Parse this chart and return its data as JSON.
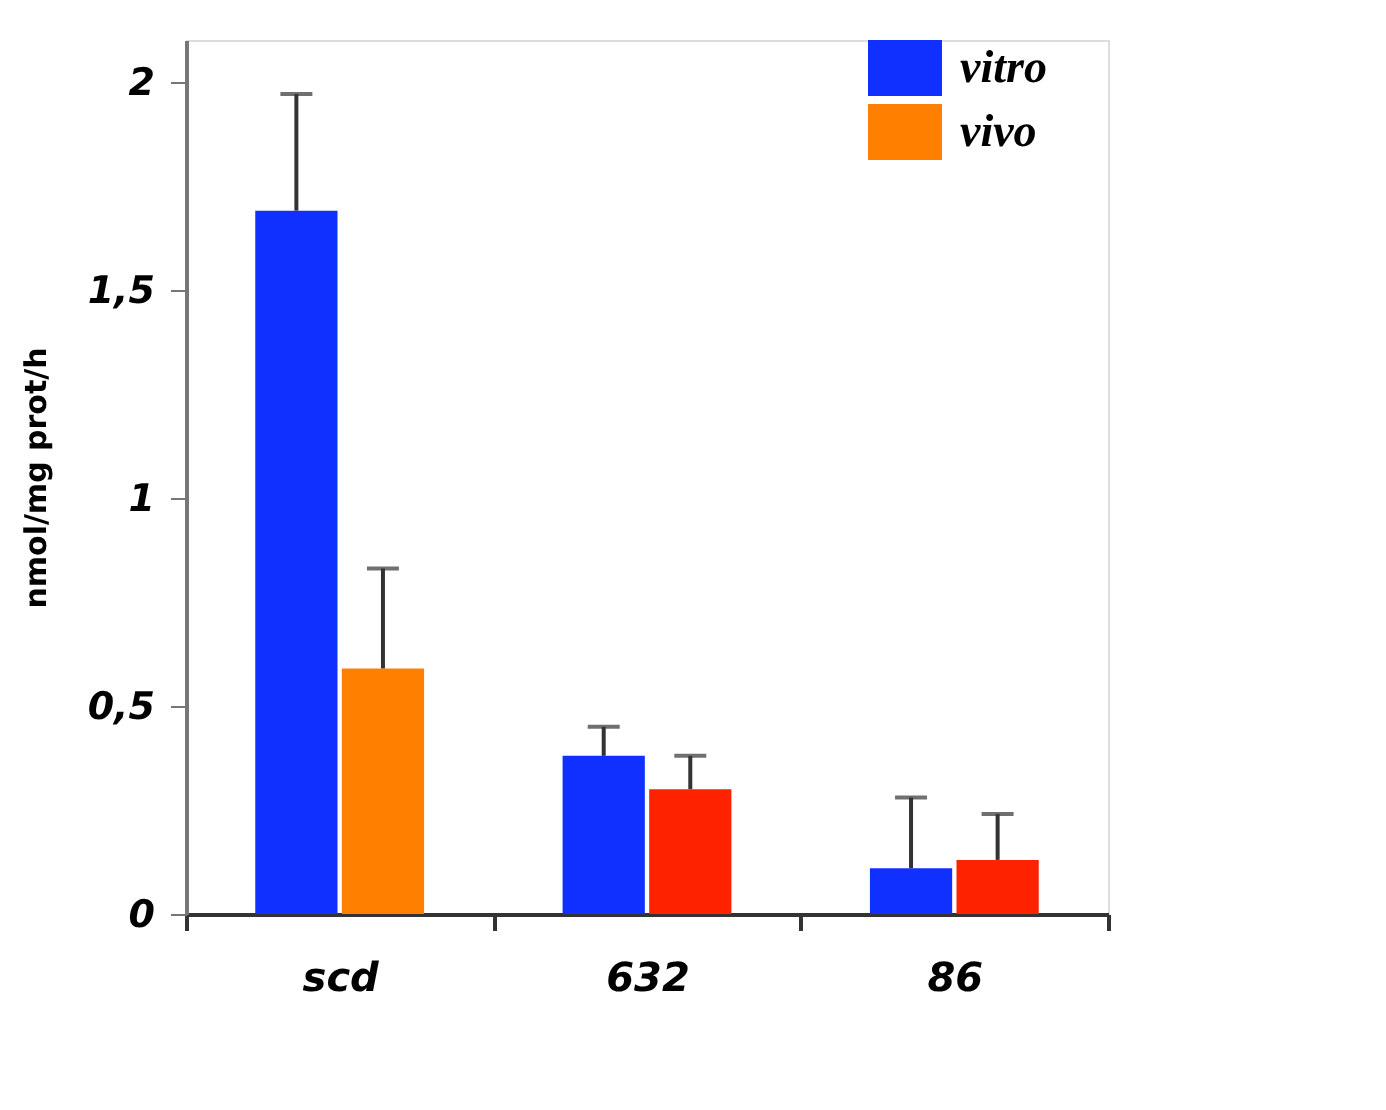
{
  "chart_data": {
    "type": "bar",
    "ylabel": "nmol/mg prot/h",
    "categories": [
      "scd",
      "632",
      "86"
    ],
    "series": [
      {
        "name": "vitro",
        "color": "#1030ff",
        "values": [
          1.69,
          0.38,
          0.11
        ],
        "errors": [
          [
            1.69,
            1.97
          ],
          [
            0.38,
            0.45
          ],
          [
            0.11,
            0.28
          ]
        ]
      },
      {
        "name": "vivo",
        "color": "#ff7f00",
        "colors": [
          "#ff7f00",
          "#ff2200",
          "#ff2200"
        ],
        "values": [
          0.59,
          0.3,
          0.13
        ],
        "errors": [
          [
            0.59,
            0.83
          ],
          [
            0.3,
            0.38
          ],
          [
            0.13,
            0.24
          ]
        ]
      }
    ],
    "ylim": [
      0,
      2.1
    ],
    "yticks": [
      0,
      {
        "value": 0.5,
        "label": "0,5"
      },
      1,
      {
        "value": 1.5,
        "label": "1,5"
      },
      2
    ],
    "grid": false,
    "legend": "top right"
  }
}
